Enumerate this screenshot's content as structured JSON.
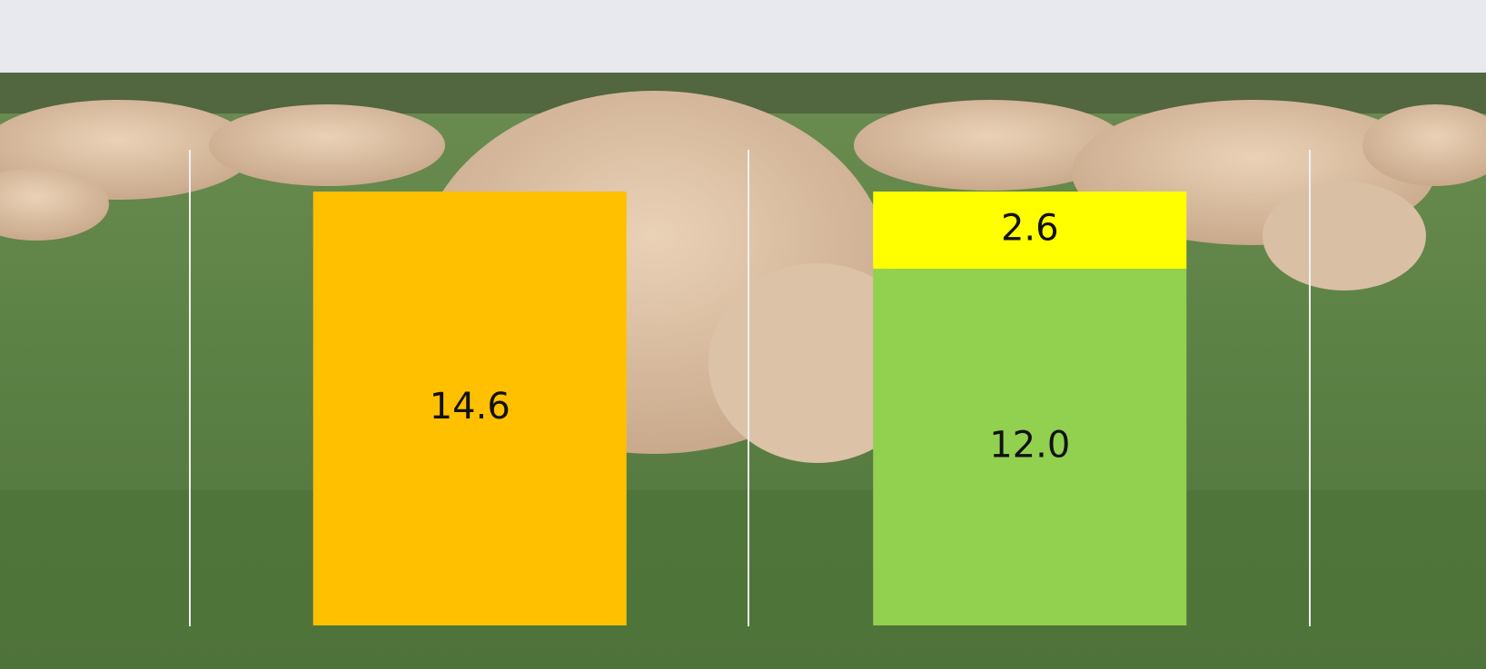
{
  "chart_data": {
    "type": "stacked-bar",
    "categories": [
      null,
      null
    ],
    "series": [
      {
        "color": "#ffc000",
        "values": [
          14.6,
          null
        ]
      },
      {
        "color": "#92d050",
        "values": [
          null,
          12
        ],
        "value_labels": [
          null,
          "12.0"
        ]
      },
      {
        "color": "#ffff00",
        "values": [
          null,
          2.6
        ]
      }
    ]
  }
}
